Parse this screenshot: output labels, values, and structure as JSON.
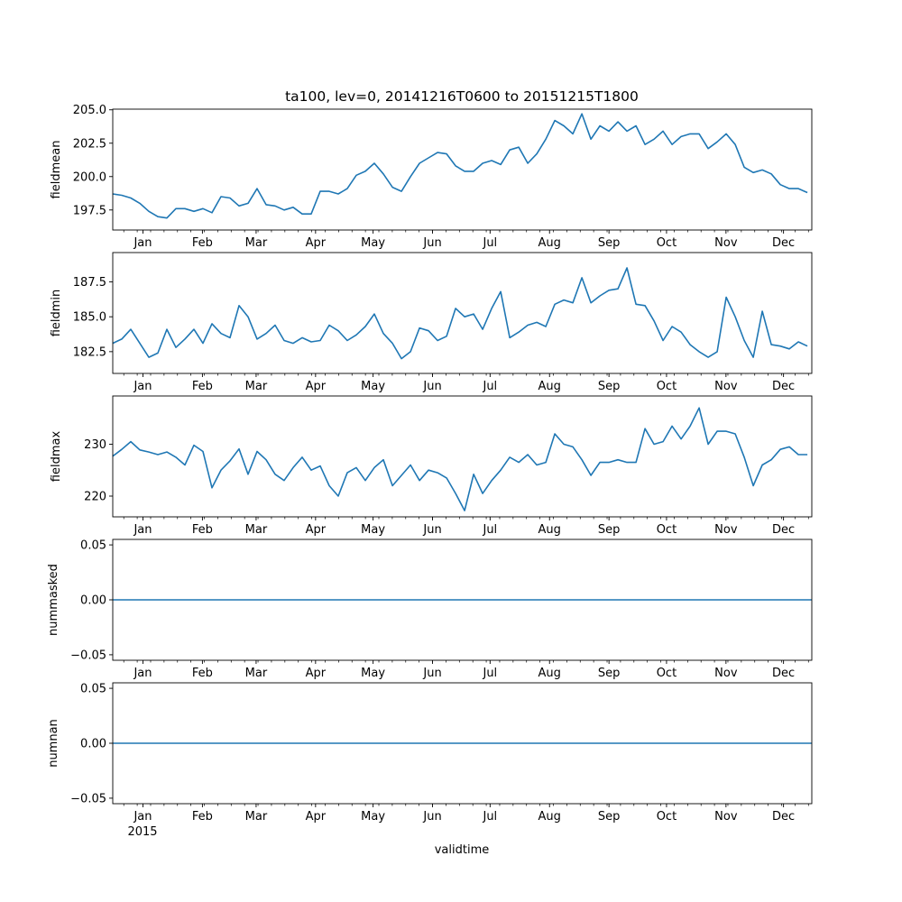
{
  "chart_data": {
    "type": "line",
    "title": "ta100, lev=0, 20141216T0600 to 20151215T1800",
    "xlabel": "validtime",
    "x_start": "2014-12-16T06:00",
    "x_end": "2015-12-15T18:00",
    "x_span_days": 364.5,
    "sample_step_days": 4.704,
    "year_label": "2015",
    "month_ticks": [
      {
        "label": "Jan",
        "day": 15.75
      },
      {
        "label": "Feb",
        "day": 46.75
      },
      {
        "label": "Mar",
        "day": 74.75
      },
      {
        "label": "Apr",
        "day": 105.75
      },
      {
        "label": "May",
        "day": 135.75
      },
      {
        "label": "Jun",
        "day": 166.75
      },
      {
        "label": "Jul",
        "day": 196.75
      },
      {
        "label": "Aug",
        "day": 227.75
      },
      {
        "label": "Sep",
        "day": 258.75
      },
      {
        "label": "Oct",
        "day": 288.75
      },
      {
        "label": "Nov",
        "day": 319.75
      },
      {
        "label": "Dec",
        "day": 349.75
      }
    ],
    "minor_tick_first_day": 5.75,
    "minor_tick_interval_days": 7,
    "line_color": "#1f77b4",
    "panels": [
      {
        "ylabel": "fieldmean",
        "ylim": [
          196.0,
          205.05
        ],
        "yticks": [
          "197.5",
          "200.0",
          "202.5",
          "205.0"
        ],
        "values": [
          198.7,
          198.6,
          198.4,
          198.0,
          197.4,
          197.0,
          196.9,
          197.6,
          197.6,
          197.4,
          197.6,
          197.3,
          198.5,
          198.4,
          197.8,
          198.0,
          199.1,
          197.9,
          197.8,
          197.5,
          197.7,
          197.2,
          197.2,
          198.9,
          198.9,
          198.7,
          199.1,
          200.1,
          200.4,
          201.0,
          200.2,
          199.2,
          198.9,
          200.0,
          201.0,
          201.4,
          201.8,
          201.7,
          200.8,
          200.4,
          200.4,
          201.0,
          201.2,
          200.9,
          202.0,
          202.2,
          201.0,
          201.7,
          202.8,
          204.2,
          203.8,
          203.2,
          204.7,
          202.8,
          203.8,
          203.4,
          204.1,
          203.4,
          203.8,
          202.4,
          202.8,
          203.4,
          202.4,
          203.0,
          203.2,
          203.2,
          202.1,
          202.6,
          203.2,
          202.4,
          200.7,
          200.3,
          200.5,
          200.2,
          199.4,
          199.1,
          199.1,
          198.8
        ]
      },
      {
        "ylabel": "fieldmin",
        "ylim": [
          180.94,
          189.6
        ],
        "yticks": [
          "182.5",
          "185.0",
          "187.5"
        ],
        "values": [
          183.1,
          183.4,
          184.1,
          183.1,
          182.1,
          182.4,
          184.1,
          182.8,
          183.4,
          184.1,
          183.1,
          184.5,
          183.8,
          183.5,
          185.8,
          185.0,
          183.4,
          183.8,
          184.4,
          183.3,
          183.1,
          183.5,
          183.2,
          183.3,
          184.4,
          184.0,
          183.3,
          183.7,
          184.3,
          185.2,
          183.8,
          183.1,
          182.0,
          182.5,
          184.2,
          184.0,
          183.3,
          183.6,
          185.6,
          185.0,
          185.2,
          184.1,
          185.6,
          186.8,
          183.5,
          183.9,
          184.4,
          184.6,
          184.3,
          185.9,
          186.2,
          186.0,
          187.8,
          186.0,
          186.5,
          186.9,
          187.0,
          188.5,
          185.9,
          185.8,
          184.7,
          183.3,
          184.3,
          183.9,
          183.0,
          182.5,
          182.1,
          182.5,
          186.4,
          185.0,
          183.3,
          182.1,
          185.4,
          183.0,
          182.9,
          182.7,
          183.2,
          182.9
        ]
      },
      {
        "ylabel": "fieldmax",
        "ylim": [
          216.0,
          239.3
        ],
        "yticks": [
          "220",
          "230"
        ],
        "values": [
          227.7,
          229.0,
          230.5,
          228.9,
          228.5,
          228.0,
          228.5,
          227.5,
          226.0,
          229.8,
          228.6,
          221.6,
          225.0,
          226.8,
          229.1,
          224.2,
          228.6,
          227.0,
          224.2,
          223.0,
          225.5,
          227.5,
          225.0,
          225.8,
          222.0,
          220.0,
          224.5,
          225.5,
          223.0,
          225.5,
          227.0,
          222.0,
          224.0,
          226.0,
          223.0,
          225.0,
          224.5,
          223.5,
          220.5,
          217.2,
          224.2,
          220.5,
          223.0,
          225.0,
          227.5,
          226.5,
          228.0,
          226.0,
          226.5,
          232.0,
          230.0,
          229.5,
          227.0,
          224.0,
          226.5,
          226.5,
          227.0,
          226.5,
          226.5,
          233.0,
          230.0,
          230.5,
          233.5,
          231.0,
          233.5,
          237.0,
          230.0,
          232.5,
          232.5,
          232.0,
          227.5,
          222.0,
          226.0,
          227.0,
          229.0,
          229.5,
          228.0,
          228.0
        ]
      },
      {
        "ylabel": "nummasked",
        "ylim": [
          -0.055,
          0.055
        ],
        "yticks": [
          "−0.05",
          "0.00",
          "0.05"
        ],
        "constant": 0
      },
      {
        "ylabel": "numnan",
        "ylim": [
          -0.055,
          0.055
        ],
        "yticks": [
          "−0.05",
          "0.00",
          "0.05"
        ],
        "constant": 0
      }
    ]
  }
}
